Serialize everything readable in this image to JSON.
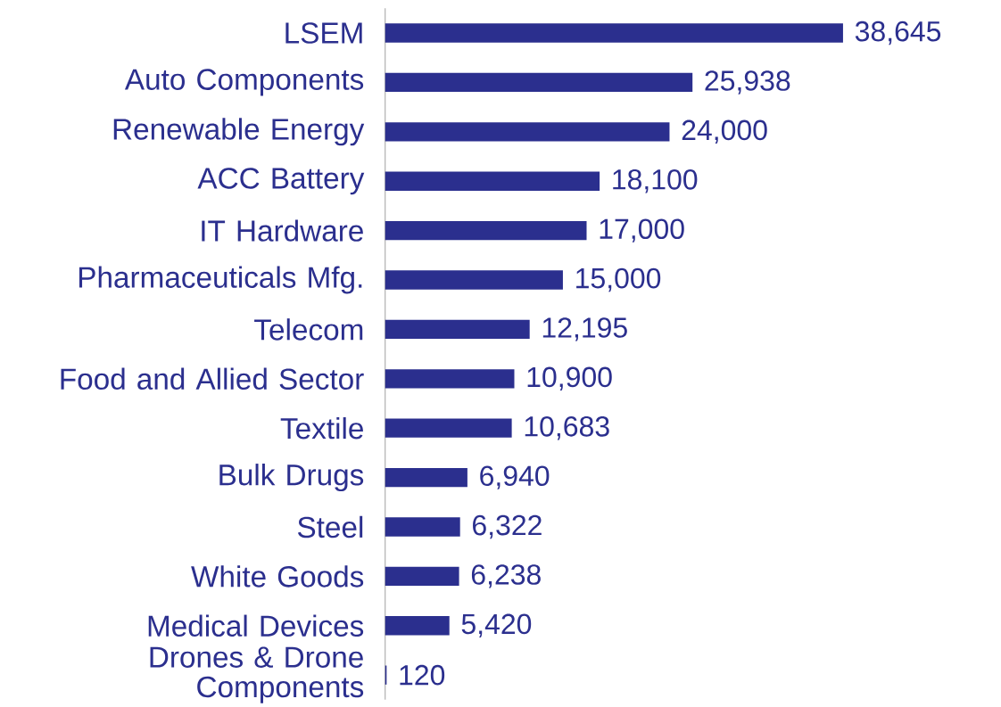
{
  "chart_data": {
    "type": "bar",
    "orientation": "horizontal",
    "color": "#2b2f8e",
    "value_labels": [
      "38,645",
      "25,938",
      "24,000",
      "18,100",
      "17,000",
      "15,000",
      "12,195",
      "10,900",
      "10,683",
      "6,940",
      "6,322",
      "6,238",
      "5,420",
      "120"
    ],
    "categories": [
      "LSEM",
      "Auto Components",
      "Renewable Energy",
      "ACC Battery",
      "IT Hardware",
      "Pharmaceuticals Mfg.",
      "Telecom",
      "Food and Allied Sector",
      "Textile",
      "Bulk Drugs",
      "Steel",
      "White Goods",
      "Medical Devices",
      "Drones & Drone Components"
    ],
    "values": [
      38645,
      25938,
      24000,
      18100,
      17000,
      15000,
      12195,
      10900,
      10683,
      6940,
      6322,
      6238,
      5420,
      120
    ]
  }
}
